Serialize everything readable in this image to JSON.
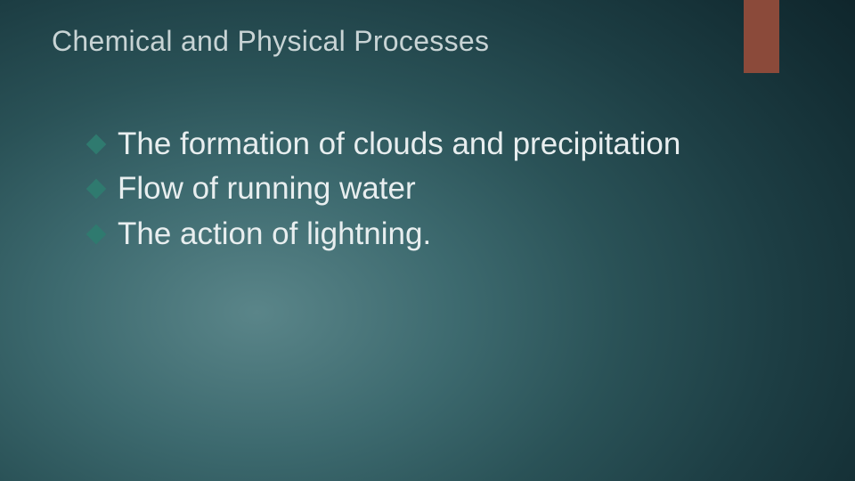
{
  "slide": {
    "title": "Chemical and Physical Processes",
    "title_color": "#c8d4d5",
    "title_fontsize": 32,
    "background_gradient_center": "#5a8589",
    "background_gradient_edge": "#0d2228",
    "accent_bar_color": "#8b4a3a",
    "bullet_marker_color": "#2f7a6f",
    "body_text_color": "#e8eeef",
    "body_fontsize": 35,
    "bullets": [
      {
        "text": "The formation of clouds and precipitation"
      },
      {
        "text": "Flow of running water"
      },
      {
        "text": "The action of lightning."
      }
    ]
  }
}
